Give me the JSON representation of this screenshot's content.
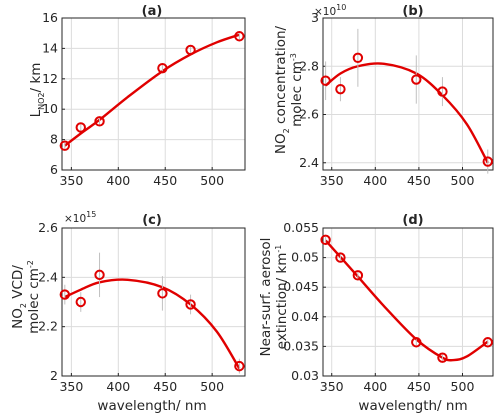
{
  "colors": {
    "series": "#e00000",
    "errorbar": "#c0c0c0",
    "axis": "#262626",
    "grid": "#dcdcdc"
  },
  "chart_data": [
    {
      "type": "scatter",
      "title": "(a)",
      "xlabel": "",
      "ylabel_parts": [
        "L",
        "NO2",
        "/ km"
      ],
      "xlim": [
        340,
        535
      ],
      "ylim": [
        6,
        16
      ],
      "xticks": [
        350,
        400,
        450,
        500
      ],
      "yticks": [
        6,
        8,
        10,
        12,
        14,
        16
      ],
      "ytick_labels": [
        "6",
        "8",
        "10",
        "12",
        "14",
        "16"
      ],
      "exponent": null,
      "grid": true,
      "points": [
        {
          "x": 343,
          "y": 7.6,
          "err": 0.2
        },
        {
          "x": 360,
          "y": 8.8,
          "err": 0.2
        },
        {
          "x": 380,
          "y": 9.2,
          "err": 0.2
        },
        {
          "x": 447,
          "y": 12.7,
          "err": 0.2
        },
        {
          "x": 477,
          "y": 13.9,
          "err": 0.2
        },
        {
          "x": 529,
          "y": 14.8,
          "err": 0.2
        }
      ],
      "fit": {
        "x": [
          343,
          360,
          380,
          410,
          447,
          477,
          505,
          529
        ],
        "y": [
          7.6,
          8.4,
          9.3,
          10.8,
          12.5,
          13.6,
          14.4,
          14.9
        ]
      }
    },
    {
      "type": "scatter",
      "title": "(b)",
      "xlabel": "",
      "ylabel_parts": [
        "NO",
        "2",
        " concentration/",
        "molec cm",
        "-3"
      ],
      "xlim": [
        340,
        535
      ],
      "ylim": [
        23700000000.0,
        30000000000.0
      ],
      "xticks": [
        350,
        400,
        450,
        500
      ],
      "yticks": [
        24000000000.0,
        26000000000.0,
        28000000000.0,
        30000000000.0
      ],
      "ytick_labels": [
        "2.4",
        "2.6",
        "2.8",
        "3"
      ],
      "exponent": {
        "base": "×10",
        "power": "10"
      },
      "grid": true,
      "points": [
        {
          "x": 343,
          "y": 27400000000.0,
          "err": 800000000.0
        },
        {
          "x": 360,
          "y": 27050000000.0,
          "err": 500000000.0
        },
        {
          "x": 380,
          "y": 28350000000.0,
          "err": 1200000000.0
        },
        {
          "x": 447,
          "y": 27450000000.0,
          "err": 1000000000.0
        },
        {
          "x": 477,
          "y": 26950000000.0,
          "err": 600000000.0
        },
        {
          "x": 529,
          "y": 24050000000.0,
          "err": 500000000.0
        }
      ],
      "fit": {
        "x": [
          343,
          360,
          380,
          410,
          447,
          477,
          505,
          529
        ],
        "y": [
          27200000000.0,
          27700000000.0,
          28000000000.0,
          28100000000.0,
          27700000000.0,
          26800000000.0,
          25600000000.0,
          24000000000.0
        ]
      }
    },
    {
      "type": "scatter",
      "title": "(c)",
      "xlabel": "wavelength/ nm",
      "ylabel_parts": [
        "NO",
        "2",
        " VCD/",
        "molec cm",
        "-2"
      ],
      "xlim": [
        340,
        535
      ],
      "ylim": [
        2000000000000000.0,
        2600000000000000.0
      ],
      "xticks": [
        350,
        400,
        450,
        500
      ],
      "yticks": [
        2000000000000000.0,
        2200000000000000.0,
        2400000000000000.0,
        2600000000000000.0
      ],
      "ytick_labels": [
        "2",
        "2.2",
        "2.4",
        "2.6"
      ],
      "exponent": {
        "base": "×10",
        "power": "15"
      },
      "grid": true,
      "points": [
        {
          "x": 343,
          "y": 2330000000000000.0,
          "err": 40000000000000.0
        },
        {
          "x": 360,
          "y": 2300000000000000.0,
          "err": 40000000000000.0
        },
        {
          "x": 380,
          "y": 2410000000000000.0,
          "err": 90000000000000.0
        },
        {
          "x": 447,
          "y": 2335000000000000.0,
          "err": 70000000000000.0
        },
        {
          "x": 477,
          "y": 2290000000000000.0,
          "err": 40000000000000.0
        },
        {
          "x": 529,
          "y": 2040000000000000.0,
          "err": 30000000000000.0
        }
      ],
      "fit": {
        "x": [
          343,
          360,
          380,
          410,
          447,
          477,
          505,
          529
        ],
        "y": [
          2320000000000000.0,
          2350000000000000.0,
          2380000000000000.0,
          2390000000000000.0,
          2360000000000000.0,
          2290000000000000.0,
          2180000000000000.0,
          2030000000000000.0
        ]
      }
    },
    {
      "type": "scatter",
      "title": "(d)",
      "xlabel": "wavelength/ nm",
      "ylabel_parts": [
        "Near-surf. aerosol",
        "extinction/ km",
        "-1"
      ],
      "xlim": [
        340,
        535
      ],
      "ylim": [
        0.03,
        0.055
      ],
      "xticks": [
        350,
        400,
        450,
        500
      ],
      "yticks": [
        0.03,
        0.035,
        0.04,
        0.045,
        0.05,
        0.055
      ],
      "ytick_labels": [
        "0.03",
        "0.035",
        "0.04",
        "0.045",
        "0.05",
        "0.055"
      ],
      "exponent": null,
      "grid": true,
      "points": [
        {
          "x": 343,
          "y": 0.053,
          "err": 0.0005
        },
        {
          "x": 360,
          "y": 0.05,
          "err": 0.0005
        },
        {
          "x": 380,
          "y": 0.047,
          "err": 0.0005
        },
        {
          "x": 447,
          "y": 0.0357,
          "err": 0.0005
        },
        {
          "x": 477,
          "y": 0.0331,
          "err": 0.0005
        },
        {
          "x": 529,
          "y": 0.0357,
          "err": 0.0005
        }
      ],
      "fit": {
        "x": [
          343,
          360,
          380,
          410,
          447,
          477,
          490,
          505,
          529
        ],
        "y": [
          0.0529,
          0.0501,
          0.0468,
          0.0418,
          0.0362,
          0.0331,
          0.0327,
          0.0333,
          0.0358
        ]
      }
    }
  ]
}
